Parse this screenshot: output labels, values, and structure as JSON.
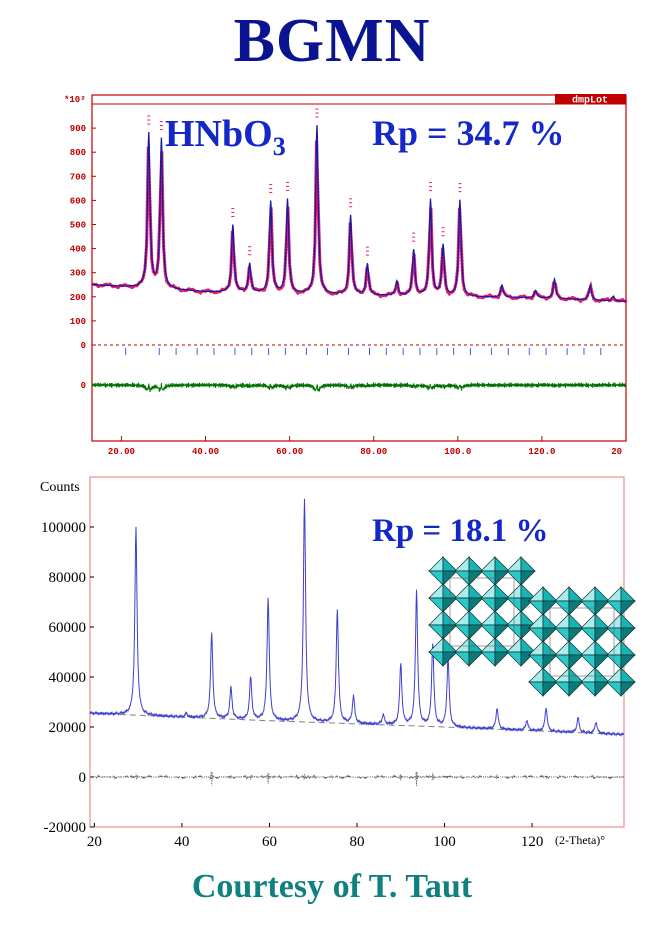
{
  "title": "BGMN",
  "footer": "Courtesy of T. Taut",
  "colors": {
    "title": "#0a1490",
    "footer": "#108080",
    "frame1": "#c00000",
    "observed": "#e0206a",
    "calculated": "#1a1aa0",
    "difference": "#007000",
    "frame2": "#e08070",
    "fit2": "#4040d0",
    "crystal": "#18b4b4"
  },
  "chart_data": [
    {
      "type": "line",
      "badge": "dmpLot",
      "scale_label": "*10²",
      "compound": {
        "main": "HNbO",
        "sub": "3"
      },
      "annotation": "Rp = 34.7 %",
      "x_ticks": [
        "20.00",
        "40.00",
        "60.00",
        "80.00",
        "100.0",
        "120.0",
        "20"
      ],
      "y_ticks": [
        "900",
        "800",
        "700",
        "600",
        "500",
        "400",
        "300",
        "200",
        "100",
        "0"
      ],
      "diff_label": "0",
      "xlim": [
        13,
        140
      ],
      "ylim": [
        0,
        1000
      ],
      "background": [
        [
          13,
          250
        ],
        [
          40,
          220
        ],
        [
          80,
          205
        ],
        [
          120,
          195
        ],
        [
          140,
          180
        ]
      ],
      "peaks": [
        [
          26.5,
          640
        ],
        [
          29.5,
          620
        ],
        [
          46.5,
          280
        ],
        [
          50.5,
          120
        ],
        [
          55.5,
          380
        ],
        [
          59.5,
          390
        ],
        [
          66.5,
          700
        ],
        [
          74.5,
          330
        ],
        [
          78.5,
          130
        ],
        [
          85.5,
          60
        ],
        [
          89.5,
          190
        ],
        [
          93.5,
          400
        ],
        [
          96.5,
          210
        ],
        [
          100.5,
          400
        ],
        [
          110.5,
          50
        ],
        [
          118.5,
          30
        ],
        [
          123.0,
          80
        ],
        [
          131.5,
          60
        ],
        [
          137.0,
          20
        ]
      ],
      "reflections": [
        21,
        29,
        33,
        38,
        42,
        47,
        51,
        55,
        59,
        64,
        69,
        74,
        79,
        83,
        87,
        91,
        95,
        99,
        103,
        108,
        112,
        117,
        121,
        126,
        130,
        134
      ],
      "series": [
        {
          "name": "",
          "role": "observed"
        },
        {
          "name": "",
          "role": "calculated"
        },
        {
          "name": "",
          "role": "difference"
        }
      ]
    },
    {
      "type": "line",
      "ylabel": "Counts",
      "xlabel": "(2-Theta)°",
      "annotation": "Rp = 18.1 %",
      "x_ticks": [
        "20",
        "40",
        "60",
        "80",
        "100",
        "120"
      ],
      "y_ticks": [
        "100000",
        "80000",
        "60000",
        "40000",
        "20000",
        "0",
        "-20000"
      ],
      "xlim": [
        19,
        141
      ],
      "ylim": [
        -20000,
        120000
      ],
      "background": [
        [
          19,
          25500
        ],
        [
          60,
          22500
        ],
        [
          100,
          20000
        ],
        [
          141,
          17000
        ]
      ],
      "peaks": [
        [
          29.5,
          75000
        ],
        [
          41.0,
          1500
        ],
        [
          46.8,
          34000
        ],
        [
          51.2,
          12500
        ],
        [
          55.7,
          17000
        ],
        [
          59.7,
          49000
        ],
        [
          68.0,
          89000
        ],
        [
          75.5,
          45500
        ],
        [
          79.2,
          11000
        ],
        [
          86.0,
          4000
        ],
        [
          90.0,
          24500
        ],
        [
          93.6,
          54000
        ],
        [
          97.3,
          33000
        ],
        [
          100.8,
          27500
        ],
        [
          112.0,
          8500
        ],
        [
          118.8,
          4000
        ],
        [
          123.2,
          9500
        ],
        [
          130.5,
          6000
        ],
        [
          134.6,
          4500
        ]
      ],
      "series": [
        {
          "name": "",
          "role": "fit"
        },
        {
          "name": "",
          "role": "background"
        },
        {
          "name": "",
          "role": "difference"
        }
      ]
    }
  ]
}
